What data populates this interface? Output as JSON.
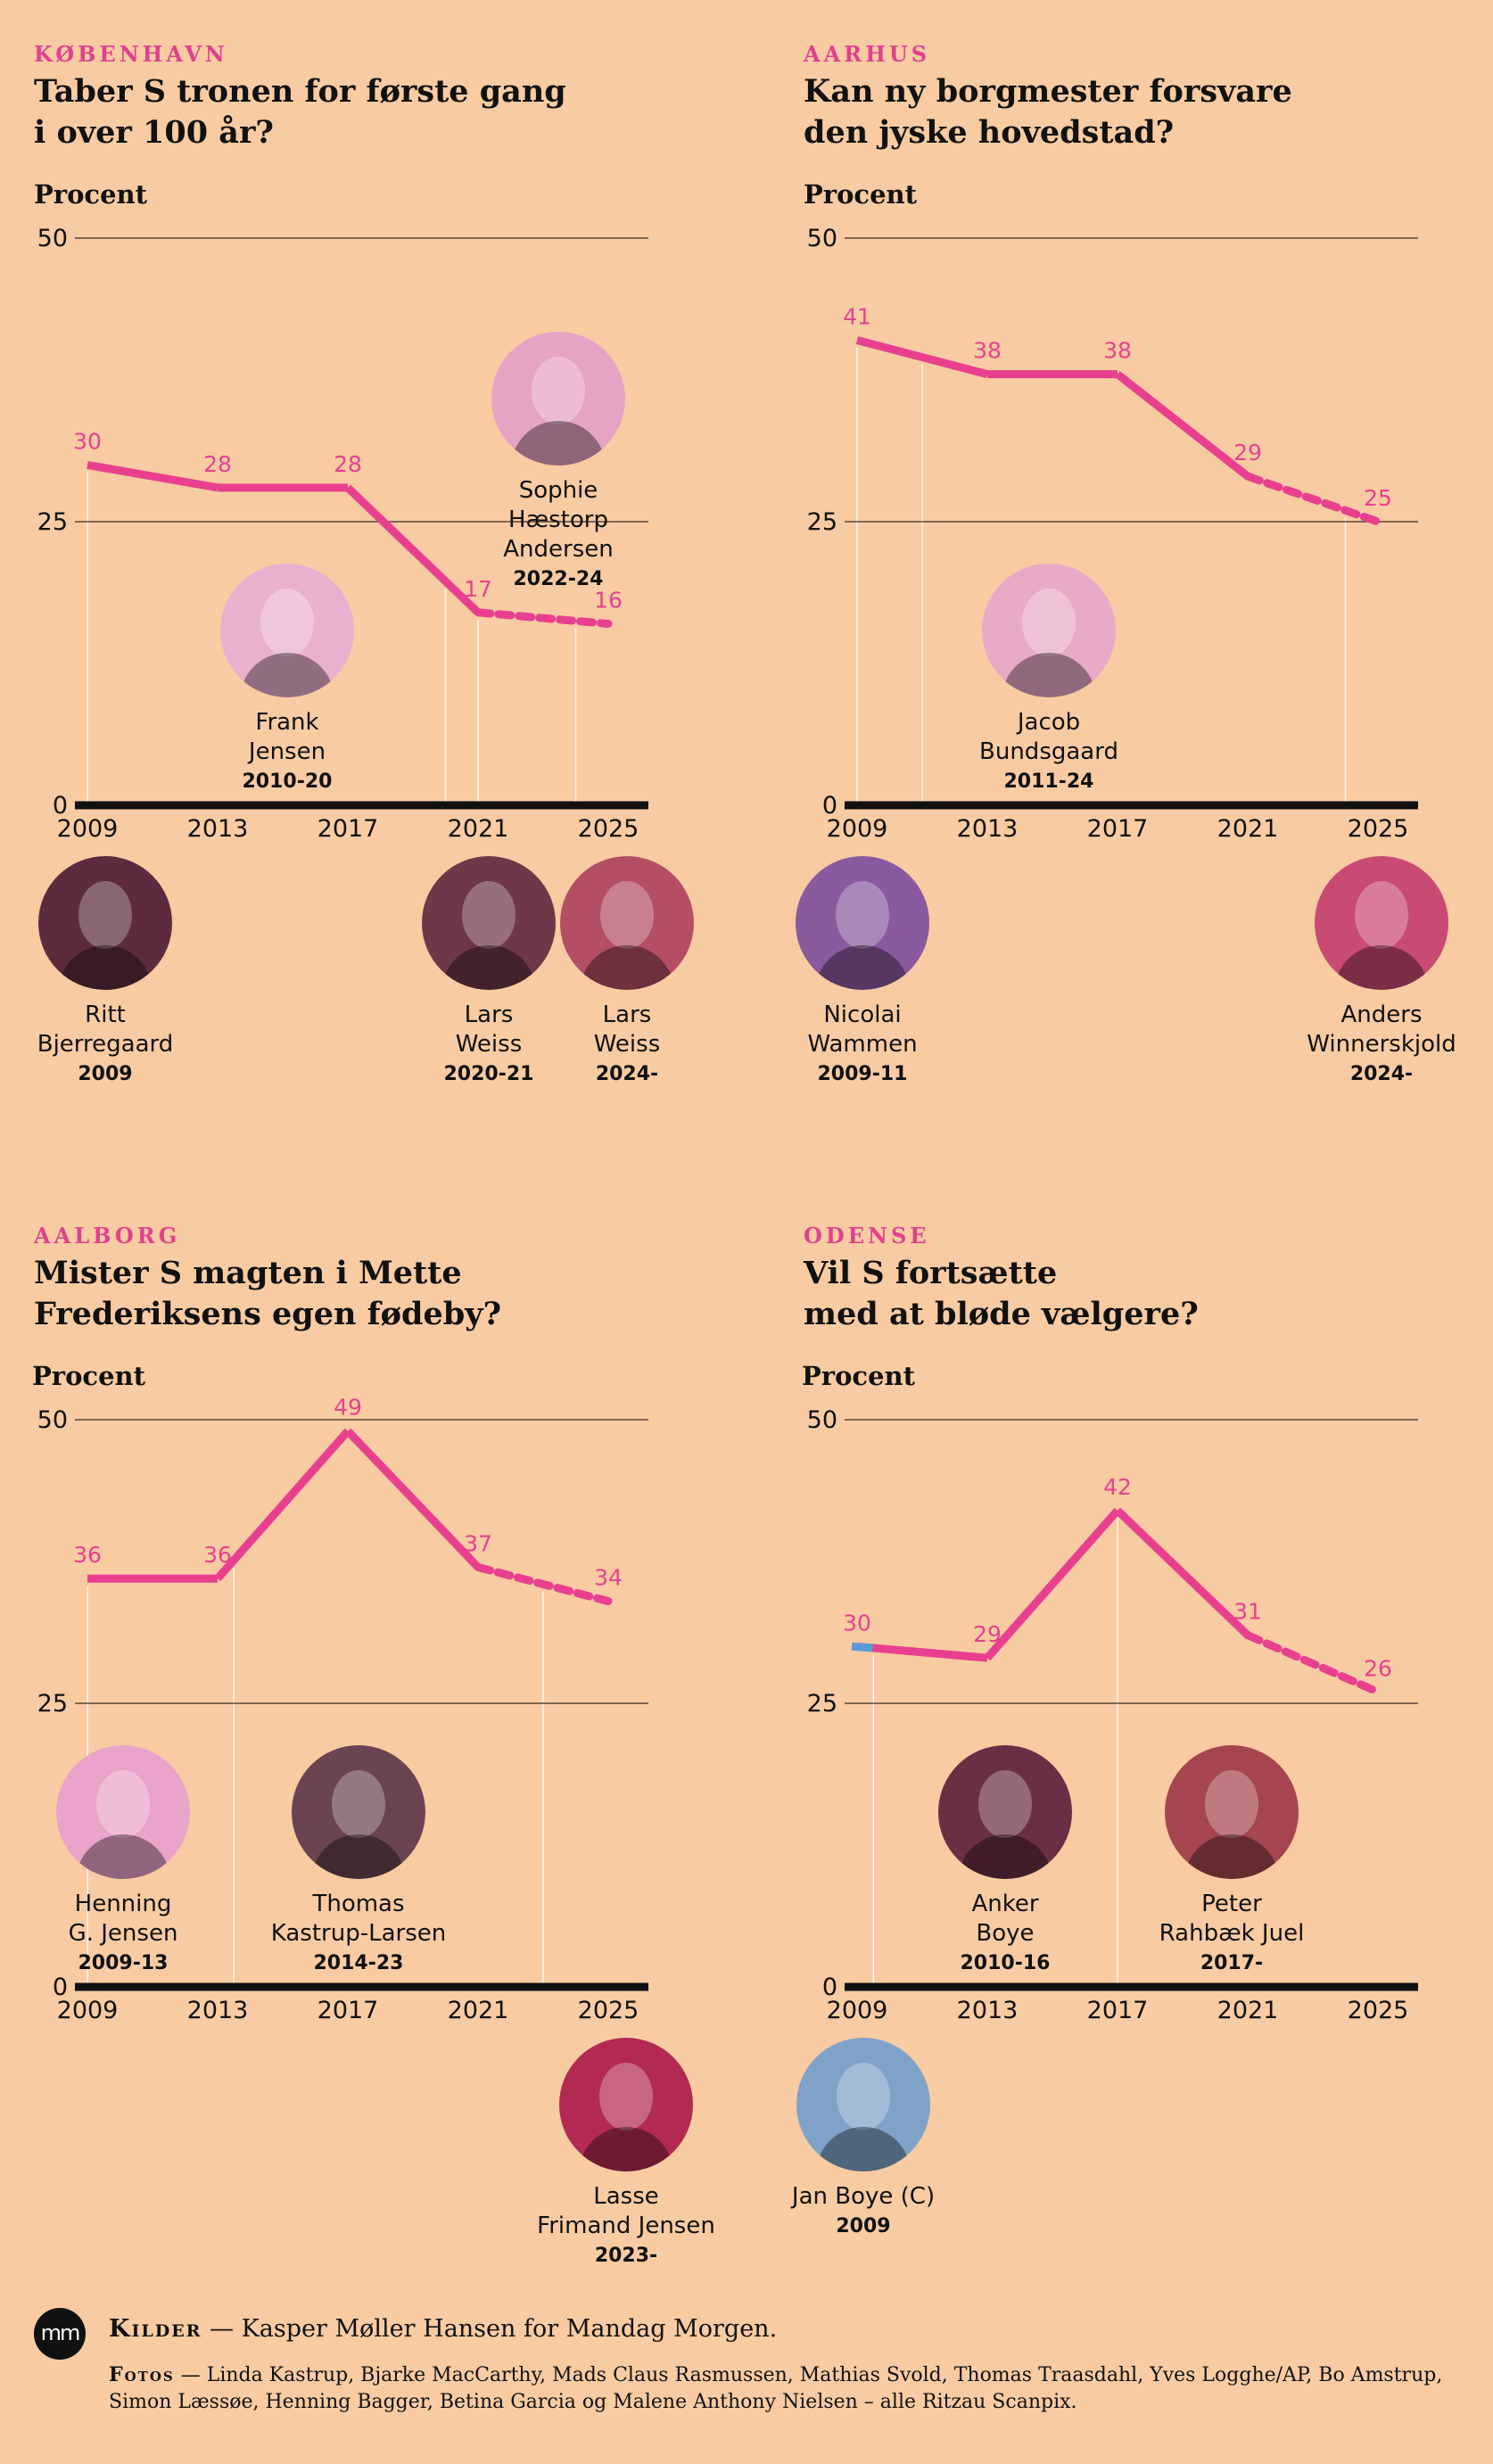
{
  "unit_label": "Procent",
  "panels": [
    {
      "city": "KØBENHAVN",
      "headline": "Taber S tronen for første gang\ni over 100 år?",
      "mayors": [
        {
          "name": "Sophie\nHæstorp\nAndersen",
          "years": "2022-24",
          "color": "#e6a3c4"
        },
        {
          "name": "Frank\nJensen",
          "years": "2010-20",
          "color": "#eab0cf"
        },
        {
          "name": "Ritt\nBjerregaard",
          "years": "2009",
          "color": "#5c2c3e"
        },
        {
          "name": "Lars\nWeiss",
          "years": "2020-21",
          "color": "#6e3848"
        },
        {
          "name": "Lars\nWeiss",
          "years": "2024-",
          "color": "#b34e63"
        }
      ]
    },
    {
      "city": "AARHUS",
      "headline": "Kan ny borgmester forsvare\nden jyske hovedstad?",
      "mayors": [
        {
          "name": "Jacob\nBundsgaard",
          "years": "2011-24",
          "color": "#e9aac8"
        },
        {
          "name": "Nicolai\nWammen",
          "years": "2009-11",
          "color": "#8a5a9e"
        },
        {
          "name": "Anders\nWinnerskjold",
          "years": "2024-",
          "color": "#c94a72"
        }
      ]
    },
    {
      "city": "AALBORG",
      "headline": "Mister S magten i Mette\nFrederiksens egen fødeby?",
      "mayors": [
        {
          "name": "Henning\nG. Jensen",
          "years": "2009-13",
          "color": "#eaa4c9"
        },
        {
          "name": "Thomas\nKastrup-Larsen",
          "years": "2014-23",
          "color": "#6a4452"
        },
        {
          "name": "Lasse\nFrimand Jensen",
          "years": "2023-",
          "color": "#b22a52"
        }
      ]
    },
    {
      "city": "ODENSE",
      "headline": "Vil S fortsætte\nmed at bløde vælgere?",
      "mayors": [
        {
          "name": "Anker\nBoye",
          "years": "2010-16",
          "color": "#6a2f44"
        },
        {
          "name": "Peter\nRahbæk Juel",
          "years": "2017-",
          "color": "#a5454f"
        },
        {
          "name": "Jan Boye (C)",
          "years": "2009",
          "color": "#7fa3c8"
        }
      ]
    }
  ],
  "chart_data": [
    {
      "type": "line",
      "title": "Taber S tronen for første gang i over 100 år?",
      "ylabel": "Procent",
      "ylim": [
        0,
        50
      ],
      "yticks": [
        0,
        25,
        50
      ],
      "xticks": [
        2009,
        2013,
        2017,
        2021,
        2025
      ],
      "x": [
        2009,
        2013,
        2017,
        2021,
        2025
      ],
      "values": [
        30,
        28,
        28,
        17,
        16
      ],
      "labels": [
        "30",
        "28",
        "28",
        "17",
        "16"
      ],
      "projected_from_index": 3,
      "drop_lines_x": [
        2009,
        2020,
        2021,
        2024
      ]
    },
    {
      "type": "line",
      "title": "Kan ny borgmester forsvare den jyske hovedstad?",
      "ylabel": "Procent",
      "ylim": [
        0,
        50
      ],
      "yticks": [
        0,
        25,
        50
      ],
      "xticks": [
        2009,
        2013,
        2017,
        2021,
        2025
      ],
      "x": [
        2009,
        2013,
        2017,
        2021,
        2025
      ],
      "values": [
        41,
        38,
        38,
        29,
        25
      ],
      "labels": [
        "41",
        "38",
        "38",
        "29",
        "25"
      ],
      "projected_from_index": 3,
      "drop_lines_x": [
        2009,
        2011,
        2024
      ]
    },
    {
      "type": "line",
      "title": "Mister S magten i Mette Frederiksens egen fødeby?",
      "ylabel": "Procent",
      "ylim": [
        0,
        50
      ],
      "yticks": [
        0,
        25,
        50
      ],
      "xticks": [
        2009,
        2013,
        2017,
        2021,
        2025
      ],
      "x": [
        2009,
        2013,
        2017,
        2021,
        2025
      ],
      "values": [
        36,
        36,
        49,
        37,
        34
      ],
      "labels": [
        "36",
        "36",
        "49",
        "37",
        "34"
      ],
      "projected_from_index": 3,
      "drop_lines_x": [
        2009,
        2013.5,
        2023
      ]
    },
    {
      "type": "line",
      "title": "Vil S fortsætte med at bløde vælgere?",
      "ylabel": "Procent",
      "ylim": [
        0,
        50
      ],
      "yticks": [
        0,
        25,
        50
      ],
      "xticks": [
        2009,
        2013,
        2017,
        2021,
        2025
      ],
      "x": [
        2009,
        2013,
        2017,
        2021,
        2025
      ],
      "values": [
        30,
        29,
        42,
        31,
        26
      ],
      "labels": [
        "30",
        "29",
        "42",
        "31",
        "26"
      ],
      "projected_from_index": 3,
      "first_point_color": "#5b9bd5",
      "drop_lines_x": [
        2009.5,
        2017
      ]
    }
  ],
  "footer": {
    "logo": "mm",
    "sources_label": "Kilder",
    "sources_text": " — Kasper Møller Hansen for Mandag Morgen.",
    "photos_label": "Fotos",
    "photos_text": " — Linda Kastrup, Bjarke MacCarthy, Mads Claus Rasmussen, Mathias Svold, Thomas Traasdahl, Yves Logghe/AP, Bo Amstrup, Simon Læssøe, Henning Bagger, Betina Garcia og Malene Anthony Nielsen – alle Ritzau Scanpix."
  }
}
